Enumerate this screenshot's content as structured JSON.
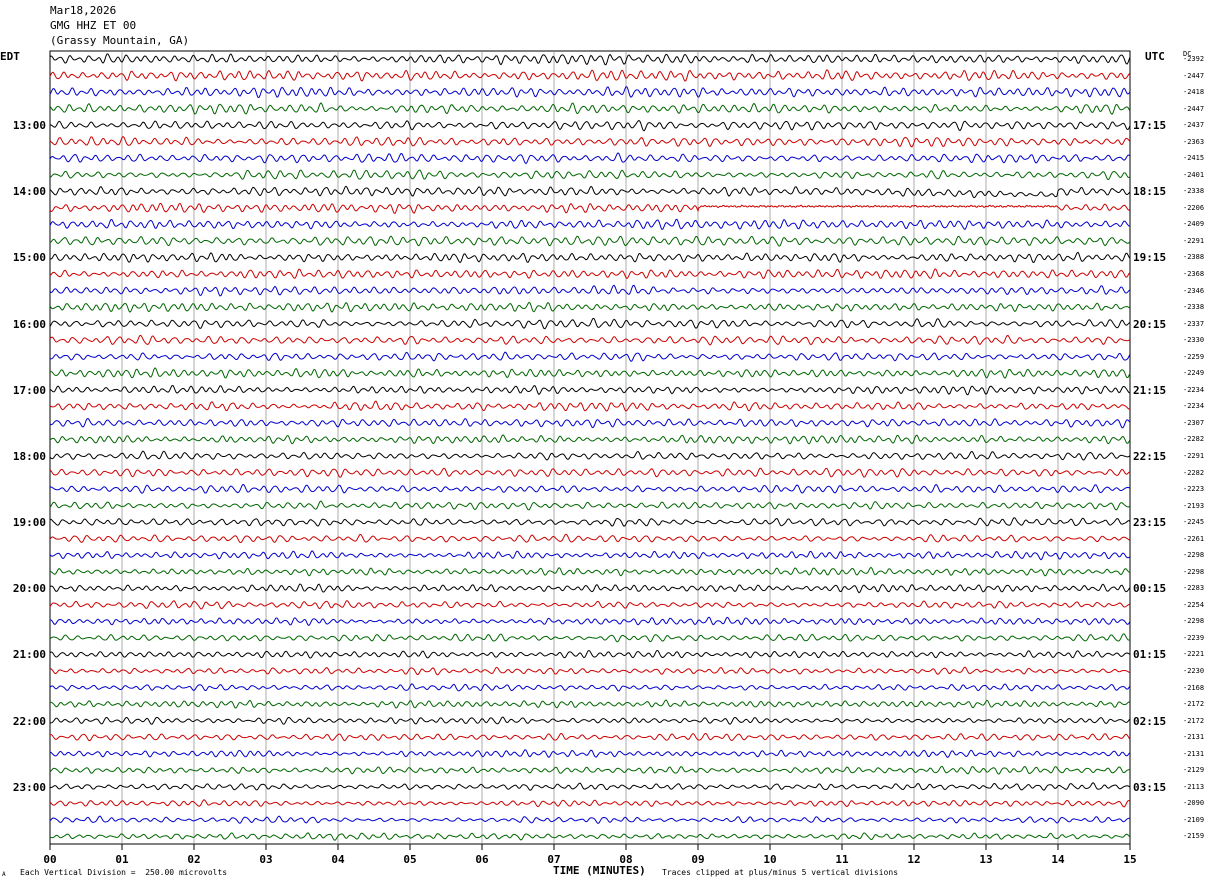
{
  "header": {
    "date": "Mar18,2026",
    "station": "GMG HHZ ET 00",
    "location": "(Grassy Mountain, GA)"
  },
  "left_axis_label": "EDT",
  "right_axis_label": "UTC",
  "dc_label": "DC",
  "xlabel": "TIME (MINUTES)",
  "footer": {
    "scale": "Each Vertical Division =  250.00 microvolts",
    "clip": "Traces clipped at plus/minus 5 vertical divisions",
    "mark": "A"
  },
  "chart_data": {
    "type": "line",
    "xlim": [
      0,
      15
    ],
    "x_ticks": [
      "00",
      "01",
      "02",
      "03",
      "04",
      "05",
      "06",
      "07",
      "08",
      "09",
      "10",
      "11",
      "12",
      "13",
      "14",
      "15"
    ],
    "trace_colors": [
      "#000000",
      "#cc0000",
      "#0000cc",
      "#006600"
    ],
    "left_time_labels": [
      "13:00",
      "14:00",
      "15:00",
      "16:00",
      "17:00",
      "18:00",
      "19:00",
      "20:00",
      "21:00",
      "22:00",
      "23:00"
    ],
    "right_time_labels": [
      "17:15",
      "18:15",
      "19:15",
      "20:15",
      "21:15",
      "22:15",
      "23:15",
      "00:15",
      "01:15",
      "02:15",
      "03:15"
    ],
    "dc_offsets": [
      "-2392",
      "-2447",
      "-2418",
      "-2447",
      "-2437",
      "-2363",
      "-2415",
      "-2401",
      "-2338",
      "-2206",
      "-2409",
      "-2291",
      "-2388",
      "-2368",
      "-2346",
      "-2338",
      "-2337",
      "-2330",
      "-2259",
      "-2249",
      "-2234",
      "-2234",
      "-2307",
      "-2282",
      "-2291",
      "-2282",
      "-2223",
      "-2193",
      "-2245",
      "-2261",
      "-2298",
      "-2298",
      "-2283",
      "-2254",
      "-2298",
      "-2239",
      "-2221",
      "-2230",
      "-2168",
      "-2172",
      "-2172",
      "-2131",
      "-2131",
      "-2129",
      "-2113",
      "-2090",
      "-2109",
      "-2159"
    ],
    "event": {
      "trace": 9,
      "start_min": 9.0,
      "end_min": 14.0,
      "description": ""
    }
  }
}
